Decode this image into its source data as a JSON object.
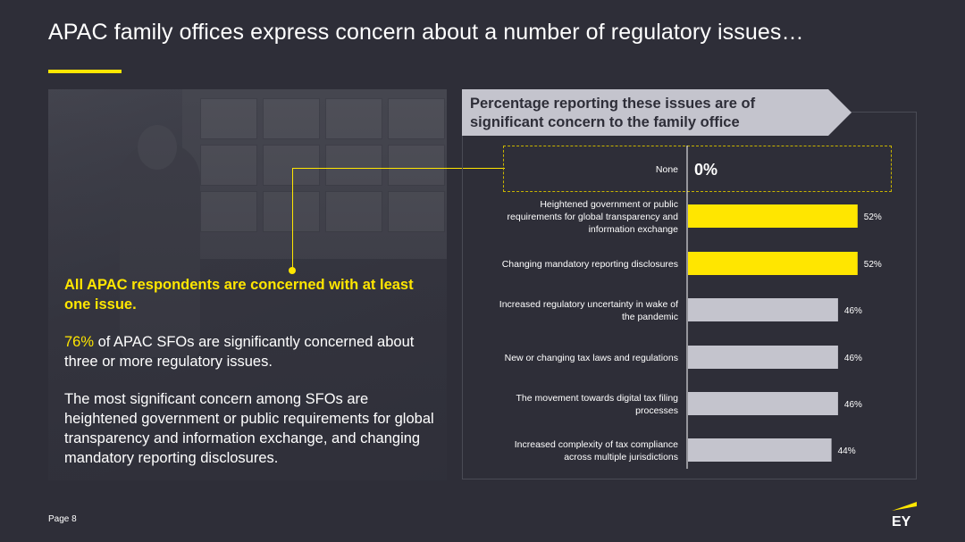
{
  "page": {
    "title": "APAC family offices express concern about a number of regulatory issues…",
    "page_number": "Page 8"
  },
  "left": {
    "highlight": "All APAC respondents are concerned with at least one issue.",
    "para1_accent": "76%",
    "para1_rest": " of APAC SFOs are significantly concerned about three or more regulatory issues.",
    "para2": "The most significant concern among SFOs are heightened government or public requirements for global transparency and information exchange, and changing mandatory reporting disclosures."
  },
  "chart_header": "Percentage reporting these issues are of significant concern to the family office",
  "colors": {
    "background": "#2e2e38",
    "accent": "#ffe600",
    "bar_gray": "#c4c4cd",
    "header_gray": "#c4c4cd"
  },
  "logo": {
    "text": "EY",
    "icon": "ey-logo-icon"
  },
  "chart_data": {
    "type": "bar",
    "orientation": "horizontal",
    "title": "Percentage reporting these issues are of significant concern to the family office",
    "xlim": [
      0,
      100
    ],
    "categories": [
      "None",
      "Heightened government or public requirements for global transparency and information exchange",
      "Changing mandatory reporting disclosures",
      "Increased regulatory uncertainty in wake of the pandemic",
      "New or changing tax laws and regulations",
      "The movement towards digital tax filing processes",
      "Increased complexity of tax compliance across multiple jurisdictions"
    ],
    "category_lines": [
      [
        "None"
      ],
      [
        "Heightened government or public",
        "requirements for global transparency and",
        "information exchange"
      ],
      [
        "Changing mandatory reporting disclosures"
      ],
      [
        "Increased regulatory uncertainty in wake of",
        "the pandemic"
      ],
      [
        "New or changing tax laws and regulations"
      ],
      [
        "The movement towards digital tax filing",
        "processes"
      ],
      [
        "Increased complexity of tax compliance",
        "across multiple jurisdictions"
      ]
    ],
    "values": [
      0,
      52,
      52,
      46,
      46,
      46,
      44
    ],
    "value_labels": [
      "0%",
      "52%",
      "52%",
      "46%",
      "46%",
      "46%",
      "44%"
    ],
    "highlighted": [
      false,
      true,
      true,
      false,
      false,
      false,
      false
    ]
  }
}
